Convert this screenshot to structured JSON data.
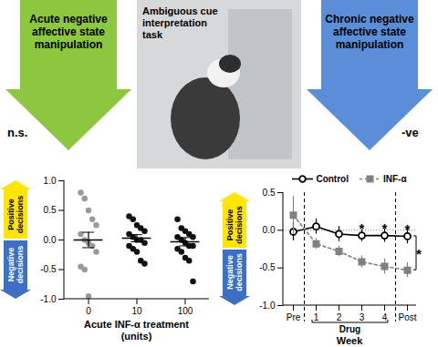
{
  "photo": {
    "label": "Ambiguous cue interpretation task"
  },
  "chart_data": [
    {
      "type": "scatter",
      "title": "Acute negative affective state manipulation",
      "subtitle": "n.s.",
      "x_label": "Acute INF-α treatment (units)",
      "categories": [
        "0",
        "10",
        "100"
      ],
      "points": [
        [
          0.8,
          0.7,
          0.5,
          0.35,
          0.25,
          0.1,
          0.0,
          -0.05,
          -0.1,
          -0.2,
          -0.45,
          -0.5,
          -0.95
        ],
        [
          0.4,
          0.35,
          0.25,
          0.2,
          0.15,
          0.1,
          0.05,
          0.0,
          0.0,
          -0.05,
          -0.1,
          -0.15,
          -0.2,
          -0.35,
          -0.4
        ],
        [
          0.35,
          0.2,
          0.15,
          0.1,
          0.05,
          0.05,
          0.0,
          -0.05,
          -0.1,
          -0.1,
          -0.15,
          -0.2,
          -0.3,
          -0.35,
          -0.7
        ]
      ],
      "means": [
        0.0,
        0.03,
        -0.03
      ],
      "errors": [
        0.13,
        0.06,
        0.07
      ],
      "colors": [
        "#9a9a9a",
        "#111111",
        "#111111"
      ],
      "marker": "circle",
      "ylim": [
        -1,
        1
      ],
      "yticks": [
        {
          "value": -1,
          "label": "-1.0"
        },
        {
          "value": -0.5,
          "label": "-0.5"
        },
        {
          "value": 0,
          "label": "0.0"
        },
        {
          "value": 0.5,
          "label": "0.5"
        },
        {
          "value": 1,
          "label": "1.0"
        }
      ],
      "annotations": {
        "positive": "Positive decisions",
        "negative": "Negative decisions"
      }
    },
    {
      "type": "line",
      "title": "Chronic negative affective state manipulation",
      "subtitle": "-ve",
      "x_label": "Week",
      "categories": [
        "Pre",
        "1",
        "2",
        "3",
        "4",
        "Post"
      ],
      "series": [
        {
          "name": "Control",
          "color": "#000000",
          "marker": "circle",
          "line_style": "solid",
          "values": [
            -0.02,
            0.05,
            -0.05,
            -0.07,
            -0.07,
            -0.08
          ],
          "errors": [
            0.12,
            0.1,
            0.1,
            0.08,
            0.09,
            0.1
          ]
        },
        {
          "name": "INF-α",
          "color": "#808080",
          "marker": "square",
          "line_style": "dashed",
          "values": [
            0.2,
            -0.18,
            -0.28,
            -0.42,
            -0.48,
            -0.53
          ],
          "errors": [
            0.25,
            0.07,
            0.07,
            0.08,
            0.1,
            0.1
          ]
        }
      ],
      "ylim": [
        -1,
        0.5
      ],
      "yticks": [
        {
          "value": -1,
          "label": "-1.0"
        },
        {
          "value": -0.5,
          "label": "-0.5"
        },
        {
          "value": 0,
          "label": "0.0"
        },
        {
          "value": 0.5,
          "label": "0.5"
        }
      ],
      "period": {
        "label": "Drug",
        "from": "1",
        "to": "4"
      },
      "baseline": 0,
      "significance": [
        {
          "x": "3",
          "y": 0.06,
          "text": "*"
        },
        {
          "x": "4",
          "y": 0.06,
          "text": "*"
        },
        {
          "x": "Post",
          "y": 0.05,
          "text": "*"
        }
      ],
      "bracket": {
        "x": "Post",
        "y1": -0.08,
        "y2": -0.53,
        "text": "*"
      },
      "legend": "top",
      "annotations": {
        "positive": "Positive decisions",
        "negative": "Negative decisions"
      }
    }
  ]
}
